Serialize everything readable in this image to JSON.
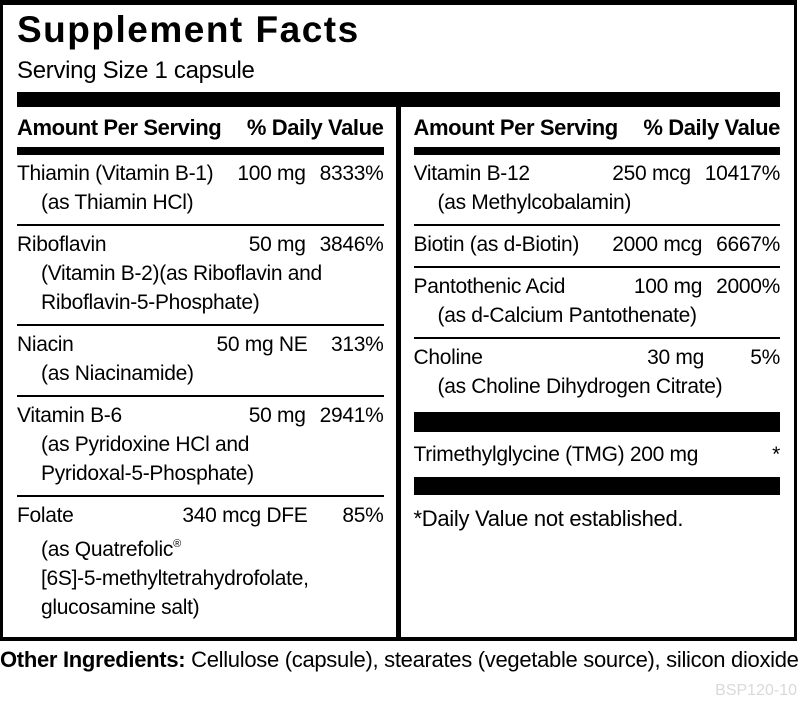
{
  "title": "Supplement Facts",
  "serving_size": "Serving Size 1 capsule",
  "columns": {
    "amount_header": "Amount Per Serving",
    "dv_header": "% Daily Value"
  },
  "left_rows": [
    {
      "name": "Thiamin (Vitamin B-1)",
      "amount": "100 mg",
      "dv": "8333%",
      "sub": [
        "(as Thiamin HCl)"
      ]
    },
    {
      "name": "Riboflavin",
      "amount": "50 mg",
      "dv": "3846%",
      "sub": [
        "(Vitamin B-2)(as Riboflavin and",
        "Riboflavin-5-Phosphate)"
      ]
    },
    {
      "name": "Niacin",
      "amount": "50 mg NE",
      "dv": "313%",
      "sub": [
        "(as Niacinamide)"
      ]
    },
    {
      "name": "Vitamin B-6",
      "amount": "50 mg",
      "dv": "2941%",
      "sub": [
        "(as Pyridoxine HCl and",
        "Pyridoxal-5-Phosphate)"
      ]
    },
    {
      "name": "Folate",
      "amount": "340 mcg DFE",
      "dv": "85%",
      "sub": [
        "(as Quatrefolic®",
        "[6S]-5-methyltetrahydrofolate,",
        "glucosamine salt)"
      ]
    }
  ],
  "right_rows": [
    {
      "name": "Vitamin B-12",
      "amount": "250 mcg",
      "dv": "10417%",
      "sub": [
        "(as Methylcobalamin)"
      ]
    },
    {
      "name": "Biotin (as d-Biotin)",
      "amount": "2000 mcg",
      "dv": "6667%",
      "sub": []
    },
    {
      "name": "Pantothenic Acid",
      "amount": "100 mg",
      "dv": "2000%",
      "sub": [
        "(as d-Calcium Pantothenate)"
      ]
    },
    {
      "name": "Choline",
      "amount": "30 mg",
      "dv": "5%",
      "sub": [
        "(as Choline Dihydrogen Citrate)"
      ]
    }
  ],
  "unlisted": {
    "name": "Trimethylglycine (TMG) 200 mg",
    "dv": "*"
  },
  "footnote": "*Daily Value not established.",
  "other_ingredients": {
    "label": "Other Ingredients:",
    "text": " Cellulose (capsule), stearates (vegetable source), silicon dioxide."
  },
  "product_code": "BSP120-10",
  "colors": {
    "ink": "#000000",
    "paper": "#ffffff",
    "code_gray": "#d9d9d9"
  }
}
